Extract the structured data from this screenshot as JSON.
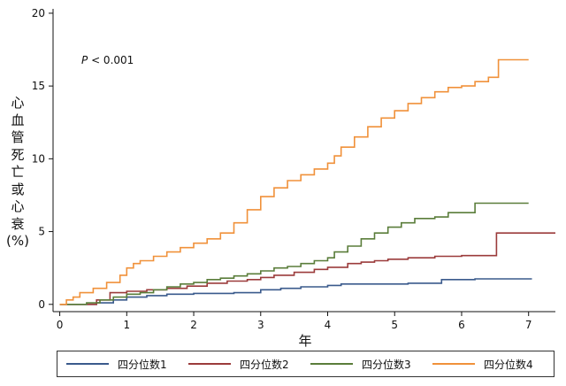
{
  "chart_data": {
    "type": "line",
    "step": true,
    "annotation": "P < 0.001",
    "ylabel_chars": [
      "心",
      "血",
      "管",
      "死",
      "亡",
      "或",
      "心",
      "衰"
    ],
    "ylabel_unit": "(%)",
    "xlabel": "年",
    "xlim": [
      -0.1,
      7.4
    ],
    "ylim": [
      -0.5,
      20.3
    ],
    "xticks": [
      0,
      1,
      2,
      3,
      4,
      5,
      6,
      7
    ],
    "yticks": [
      0,
      5,
      10,
      15,
      20
    ],
    "grid": false,
    "legend_position": "bottom",
    "series": [
      {
        "name": "四分位数1",
        "color": "#3a5a8c",
        "x": [
          0,
          0.55,
          0.8,
          1.0,
          1.3,
          1.6,
          2.0,
          2.6,
          3.0,
          3.3,
          3.6,
          4.0,
          4.2,
          4.7,
          5.2,
          5.7,
          6.2,
          7.05
        ],
        "y": [
          0,
          0.1,
          0.3,
          0.5,
          0.6,
          0.7,
          0.75,
          0.8,
          1.0,
          1.1,
          1.2,
          1.3,
          1.4,
          1.4,
          1.45,
          1.7,
          1.75,
          1.75
        ]
      },
      {
        "name": "四分位数2",
        "color": "#9b3b3b",
        "x": [
          0,
          0.55,
          0.75,
          1.0,
          1.3,
          1.6,
          1.9,
          2.2,
          2.5,
          2.8,
          3.0,
          3.2,
          3.5,
          3.8,
          4.0,
          4.3,
          4.5,
          4.7,
          4.9,
          5.2,
          5.6,
          6.0,
          6.3,
          6.5,
          6.52,
          7.4
        ],
        "y": [
          0,
          0.3,
          0.8,
          0.9,
          1.0,
          1.1,
          1.25,
          1.45,
          1.6,
          1.7,
          1.85,
          2.0,
          2.2,
          2.4,
          2.55,
          2.8,
          2.9,
          3.0,
          3.1,
          3.2,
          3.3,
          3.35,
          3.35,
          3.35,
          4.9,
          4.9
        ]
      },
      {
        "name": "四分位数3",
        "color": "#5a7d3a",
        "x": [
          0,
          0.4,
          0.6,
          0.8,
          1.0,
          1.2,
          1.4,
          1.6,
          1.8,
          2.0,
          2.2,
          2.4,
          2.6,
          2.8,
          3.0,
          3.2,
          3.4,
          3.6,
          3.8,
          4.0,
          4.1,
          4.3,
          4.5,
          4.7,
          4.9,
          5.1,
          5.3,
          5.6,
          5.8,
          6.0,
          6.2,
          7.0
        ],
        "y": [
          0,
          0.1,
          0.3,
          0.5,
          0.7,
          0.8,
          1.0,
          1.2,
          1.4,
          1.5,
          1.7,
          1.8,
          1.95,
          2.1,
          2.3,
          2.5,
          2.6,
          2.8,
          3.0,
          3.2,
          3.6,
          4.0,
          4.5,
          4.9,
          5.3,
          5.6,
          5.9,
          6.0,
          6.3,
          6.3,
          6.95,
          6.95
        ]
      },
      {
        "name": "四分位数4",
        "color": "#f0913a",
        "x": [
          0,
          0.1,
          0.2,
          0.3,
          0.5,
          0.7,
          0.9,
          1.0,
          1.1,
          1.2,
          1.4,
          1.6,
          1.8,
          2.0,
          2.2,
          2.4,
          2.6,
          2.8,
          3.0,
          3.2,
          3.4,
          3.6,
          3.8,
          4.0,
          4.1,
          4.2,
          4.4,
          4.6,
          4.8,
          5.0,
          5.2,
          5.4,
          5.6,
          5.8,
          6.0,
          6.2,
          6.4,
          6.5,
          6.55,
          7.0
        ],
        "y": [
          0,
          0.3,
          0.5,
          0.8,
          1.1,
          1.5,
          2.0,
          2.5,
          2.8,
          3.0,
          3.3,
          3.6,
          3.9,
          4.2,
          4.5,
          4.9,
          5.6,
          6.5,
          7.4,
          8.0,
          8.5,
          8.9,
          9.3,
          9.7,
          10.2,
          10.8,
          11.5,
          12.2,
          12.8,
          13.3,
          13.8,
          14.2,
          14.6,
          14.9,
          15.0,
          15.3,
          15.6,
          15.6,
          16.8,
          16.8
        ]
      }
    ]
  }
}
